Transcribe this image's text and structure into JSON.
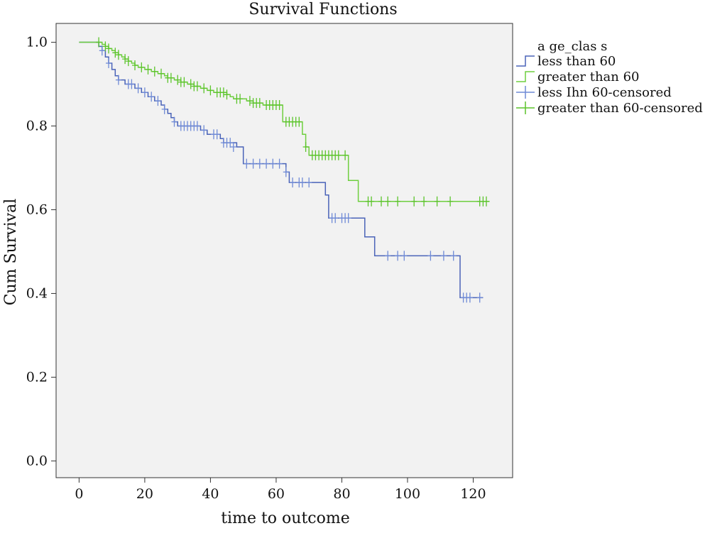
{
  "chart_data": {
    "type": "line",
    "title": "Survival Functions",
    "xlabel": "time to outcome",
    "ylabel": "Cum Survival",
    "xlim": [
      -7,
      132
    ],
    "ylim": [
      -0.04,
      1.045
    ],
    "xticks": [
      0,
      20,
      40,
      60,
      80,
      100,
      120
    ],
    "xtick_labels": [
      "0",
      "20",
      "40",
      "60",
      "80",
      "100",
      "120"
    ],
    "yticks": [
      0.0,
      0.2,
      0.4,
      0.6,
      0.8,
      1.0
    ],
    "ytick_labels": [
      "0.0",
      "0.2",
      "0.4",
      "0.6",
      "0.8",
      "1.0"
    ],
    "grid": false,
    "legend_position": "right",
    "legend_title": "a ge_clas s",
    "legend": [
      "less than 60",
      "greater than 60",
      "less Ihn 60-censored",
      "greater than 60-censored"
    ],
    "series": [
      {
        "name": "less than 60",
        "color": "#4a63b8",
        "censor_color": "#6f8ad6",
        "steps": [
          [
            0,
            1.0
          ],
          [
            6,
            0.99
          ],
          [
            7,
            0.98
          ],
          [
            8,
            0.965
          ],
          [
            9,
            0.95
          ],
          [
            10,
            0.935
          ],
          [
            11,
            0.92
          ],
          [
            12,
            0.91
          ],
          [
            14,
            0.9
          ],
          [
            17,
            0.89
          ],
          [
            19,
            0.88
          ],
          [
            21,
            0.87
          ],
          [
            23,
            0.86
          ],
          [
            25,
            0.85
          ],
          [
            26,
            0.84
          ],
          [
            27,
            0.83
          ],
          [
            28,
            0.82
          ],
          [
            29,
            0.81
          ],
          [
            30,
            0.8
          ],
          [
            37,
            0.79
          ],
          [
            39,
            0.78
          ],
          [
            43,
            0.77
          ],
          [
            44,
            0.76
          ],
          [
            48,
            0.75
          ],
          [
            50,
            0.71
          ],
          [
            63,
            0.69
          ],
          [
            64,
            0.665
          ],
          [
            75,
            0.635
          ],
          [
            76,
            0.58
          ],
          [
            87,
            0.535
          ],
          [
            90,
            0.49
          ],
          [
            116,
            0.39
          ],
          [
            123,
            0.39
          ]
        ],
        "censored": [
          [
            7,
            0.98
          ],
          [
            9,
            0.95
          ],
          [
            12,
            0.91
          ],
          [
            15,
            0.9
          ],
          [
            16,
            0.9
          ],
          [
            18,
            0.89
          ],
          [
            20,
            0.88
          ],
          [
            22,
            0.87
          ],
          [
            24,
            0.86
          ],
          [
            26,
            0.84
          ],
          [
            29,
            0.81
          ],
          [
            31,
            0.8
          ],
          [
            32,
            0.8
          ],
          [
            33,
            0.8
          ],
          [
            34,
            0.8
          ],
          [
            35,
            0.8
          ],
          [
            36,
            0.8
          ],
          [
            38,
            0.79
          ],
          [
            41,
            0.78
          ],
          [
            42,
            0.78
          ],
          [
            44,
            0.76
          ],
          [
            45,
            0.76
          ],
          [
            46,
            0.76
          ],
          [
            47,
            0.75
          ],
          [
            51,
            0.71
          ],
          [
            53,
            0.71
          ],
          [
            55,
            0.71
          ],
          [
            57,
            0.71
          ],
          [
            59,
            0.71
          ],
          [
            61,
            0.71
          ],
          [
            63,
            0.69
          ],
          [
            65,
            0.665
          ],
          [
            67,
            0.665
          ],
          [
            68,
            0.665
          ],
          [
            70,
            0.665
          ],
          [
            77,
            0.58
          ],
          [
            78,
            0.58
          ],
          [
            80,
            0.58
          ],
          [
            81,
            0.58
          ],
          [
            82,
            0.58
          ],
          [
            94,
            0.49
          ],
          [
            97,
            0.49
          ],
          [
            99,
            0.49
          ],
          [
            107,
            0.49
          ],
          [
            111,
            0.49
          ],
          [
            114,
            0.49
          ],
          [
            117,
            0.39
          ],
          [
            118,
            0.39
          ],
          [
            119,
            0.39
          ],
          [
            122,
            0.39
          ]
        ]
      },
      {
        "name": "greater than 60",
        "color": "#6fcf3f",
        "censor_color": "#5bc42a",
        "steps": [
          [
            0,
            1.0
          ],
          [
            7,
            0.995
          ],
          [
            8,
            0.99
          ],
          [
            9,
            0.985
          ],
          [
            10,
            0.98
          ],
          [
            11,
            0.975
          ],
          [
            12,
            0.97
          ],
          [
            13,
            0.965
          ],
          [
            14,
            0.96
          ],
          [
            15,
            0.955
          ],
          [
            16,
            0.95
          ],
          [
            17,
            0.945
          ],
          [
            18,
            0.94
          ],
          [
            20,
            0.935
          ],
          [
            22,
            0.93
          ],
          [
            24,
            0.925
          ],
          [
            26,
            0.92
          ],
          [
            27,
            0.915
          ],
          [
            29,
            0.91
          ],
          [
            31,
            0.905
          ],
          [
            33,
            0.9
          ],
          [
            35,
            0.895
          ],
          [
            37,
            0.89
          ],
          [
            39,
            0.885
          ],
          [
            41,
            0.88
          ],
          [
            45,
            0.875
          ],
          [
            46,
            0.87
          ],
          [
            47,
            0.865
          ],
          [
            51,
            0.86
          ],
          [
            53,
            0.855
          ],
          [
            56,
            0.85
          ],
          [
            62,
            0.81
          ],
          [
            68,
            0.78
          ],
          [
            69,
            0.75
          ],
          [
            70,
            0.73
          ],
          [
            82,
            0.67
          ],
          [
            85,
            0.62
          ],
          [
            125,
            0.62
          ]
        ],
        "censored": [
          [
            6,
            1.0
          ],
          [
            8,
            0.99
          ],
          [
            9,
            0.985
          ],
          [
            11,
            0.975
          ],
          [
            12,
            0.97
          ],
          [
            14,
            0.96
          ],
          [
            15,
            0.955
          ],
          [
            17,
            0.945
          ],
          [
            19,
            0.94
          ],
          [
            21,
            0.935
          ],
          [
            23,
            0.93
          ],
          [
            25,
            0.925
          ],
          [
            27,
            0.915
          ],
          [
            28,
            0.915
          ],
          [
            30,
            0.91
          ],
          [
            31,
            0.905
          ],
          [
            32,
            0.905
          ],
          [
            34,
            0.9
          ],
          [
            35,
            0.895
          ],
          [
            36,
            0.895
          ],
          [
            38,
            0.89
          ],
          [
            40,
            0.885
          ],
          [
            42,
            0.88
          ],
          [
            43,
            0.88
          ],
          [
            44,
            0.88
          ],
          [
            45,
            0.875
          ],
          [
            48,
            0.865
          ],
          [
            49,
            0.865
          ],
          [
            52,
            0.86
          ],
          [
            53,
            0.855
          ],
          [
            54,
            0.855
          ],
          [
            55,
            0.855
          ],
          [
            57,
            0.85
          ],
          [
            58,
            0.85
          ],
          [
            59,
            0.85
          ],
          [
            60,
            0.85
          ],
          [
            61,
            0.85
          ],
          [
            63,
            0.81
          ],
          [
            64,
            0.81
          ],
          [
            65,
            0.81
          ],
          [
            66,
            0.81
          ],
          [
            67,
            0.81
          ],
          [
            69,
            0.75
          ],
          [
            71,
            0.73
          ],
          [
            72,
            0.73
          ],
          [
            73,
            0.73
          ],
          [
            74,
            0.73
          ],
          [
            75,
            0.73
          ],
          [
            76,
            0.73
          ],
          [
            77,
            0.73
          ],
          [
            78,
            0.73
          ],
          [
            79,
            0.73
          ],
          [
            81,
            0.73
          ],
          [
            88,
            0.62
          ],
          [
            89,
            0.62
          ],
          [
            92,
            0.62
          ],
          [
            94,
            0.62
          ],
          [
            97,
            0.62
          ],
          [
            102,
            0.62
          ],
          [
            105,
            0.62
          ],
          [
            109,
            0.62
          ],
          [
            113,
            0.62
          ],
          [
            122,
            0.62
          ],
          [
            123,
            0.62
          ],
          [
            124,
            0.62
          ]
        ]
      }
    ]
  }
}
